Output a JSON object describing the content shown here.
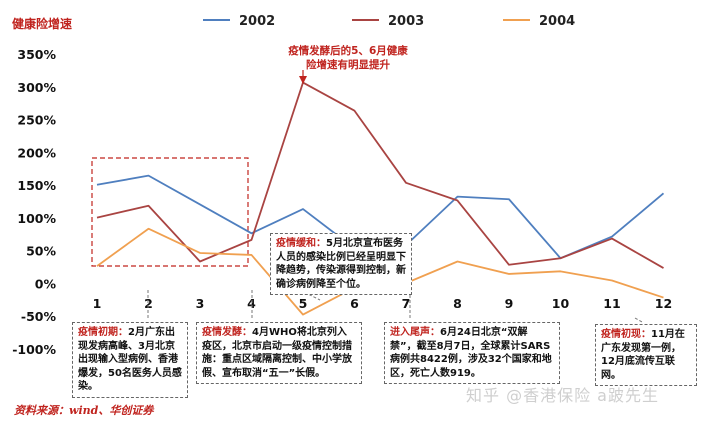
{
  "chart_data": {
    "type": "line",
    "ylabel": "健康险增速",
    "categories": [
      "1",
      "2",
      "3",
      "4",
      "5",
      "6",
      "7",
      "8",
      "9",
      "10",
      "11",
      "12"
    ],
    "ylim": [
      -1.0,
      3.5
    ],
    "y_ticks": [
      "350%",
      "300%",
      "250%",
      "200%",
      "150%",
      "100%",
      "50%",
      "0%",
      "-50%",
      "-100%"
    ],
    "series": [
      {
        "name": "2002",
        "color": "#4f7fbf",
        "values": [
          1.52,
          1.66,
          1.22,
          0.78,
          1.15,
          0.55,
          0.6,
          1.34,
          1.3,
          0.4,
          0.73,
          1.39
        ]
      },
      {
        "name": "2003",
        "color": "#a94442",
        "values": [
          1.02,
          1.2,
          0.35,
          0.68,
          3.08,
          2.65,
          1.55,
          1.28,
          0.3,
          0.4,
          0.7,
          0.25
        ]
      },
      {
        "name": "2004",
        "color": "#f0a050",
        "values": [
          0.28,
          0.85,
          0.48,
          0.45,
          -0.46,
          -0.05,
          0.02,
          0.35,
          0.16,
          0.2,
          0.06,
          -0.2
        ]
      }
    ],
    "legend_position": "top",
    "grid": false
  },
  "texts": {
    "unit": "健康险增速",
    "source": "资料来源：wind、华创证券",
    "top_note": "疫情发酵后的5、6月健康险增速有明显提升",
    "watermark": "知乎 @香港保险 a跛先生"
  },
  "annotations": {
    "a1": {
      "tag": "疫情初期：",
      "body": "2月广东出现发病高峰、3月北京出现输入型病例、香港爆发，50名医务人员感染。"
    },
    "a2": {
      "tag": "疫情发酵：",
      "body": "4月WHO将北京列入疫区，北京市启动一级疫情控制措施：重点区域隔离控制、中小学放假、宣布取消“五一”长假。"
    },
    "a3": {
      "tag": "疫情缓和：",
      "body": "5月北京宣布医务人员的感染比例已经呈明显下降趋势，传染源得到控制，新确诊病例降至个位。"
    },
    "a4": {
      "tag": "进入尾声：",
      "body": "6月24日北京“双解禁”，截至8月7日，全球累计SARS病例共8422例，涉及32个国家和地区，死亡人数919。"
    },
    "a5": {
      "tag": "疫情初现：",
      "body": "11月在广东发现第一例，12月底流传互联网。"
    }
  }
}
